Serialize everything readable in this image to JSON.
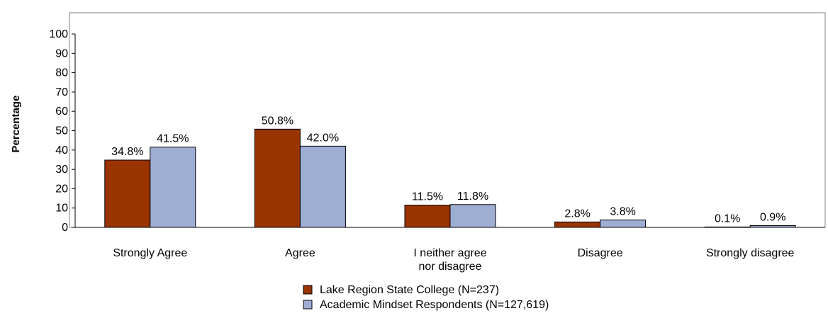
{
  "chart_data": {
    "type": "bar",
    "title": "",
    "xlabel": "",
    "ylabel": "Percentage",
    "ylim": [
      0,
      100
    ],
    "yticks": [
      0,
      10,
      20,
      30,
      40,
      50,
      60,
      70,
      80,
      90,
      100
    ],
    "grid": false,
    "legend_position": "bottom-center",
    "categories": [
      [
        "Strongly Agree"
      ],
      [
        "Agree"
      ],
      [
        "I neither agree",
        "nor disagree"
      ],
      [
        "Disagree"
      ],
      [
        "Strongly disagree"
      ]
    ],
    "series": [
      {
        "name": "Lake Region State College (N=237)",
        "color": "#993300",
        "values": [
          34.8,
          50.8,
          11.5,
          2.8,
          0.1
        ],
        "labels": [
          "34.8%",
          "50.8%",
          "11.5%",
          "2.8%",
          "0.1%"
        ]
      },
      {
        "name": "Academic Mindset Respondents (N=127,619)",
        "color": "#9EAED3",
        "values": [
          41.5,
          42.0,
          11.8,
          3.8,
          0.9
        ],
        "labels": [
          "41.5%",
          "42.0%",
          "11.8%",
          "3.8%",
          "0.9%"
        ]
      }
    ]
  }
}
